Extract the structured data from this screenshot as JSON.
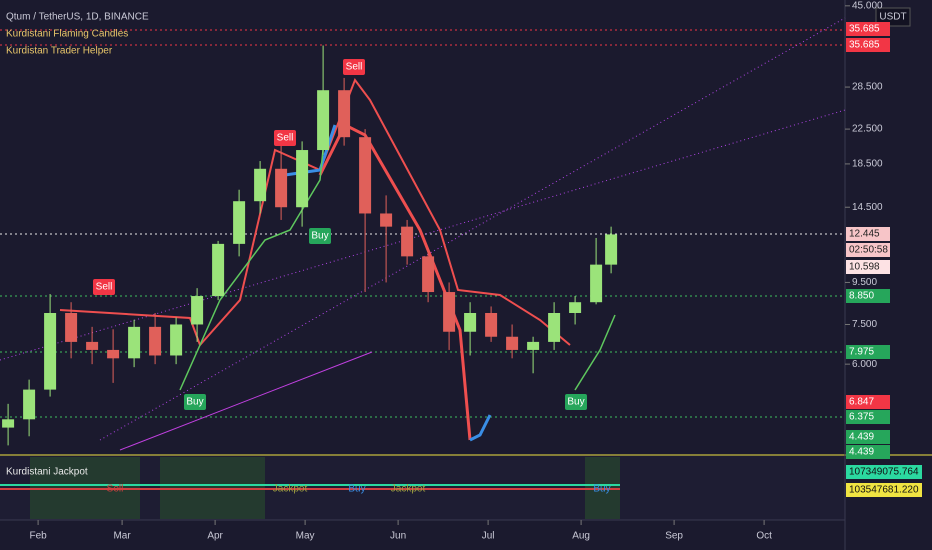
{
  "header": {
    "symbol": "Qtum / TetherUS, 1D, BINANCE",
    "indicators": [
      "Kurdistani Flaming Candles",
      "Kurdistan Trader Helper"
    ],
    "currency": "USDT"
  },
  "chart_data": {
    "type": "candlestick",
    "log": true,
    "xlim": [
      18.3,
      298.3
    ],
    "ylim": [
      3.6,
      46.5
    ],
    "xticks": [
      {
        "value": 31,
        "label": "Feb"
      },
      {
        "value": 59,
        "label": "Mar"
      },
      {
        "value": 90,
        "label": "Apr"
      },
      {
        "value": 120,
        "label": "May"
      },
      {
        "value": 151,
        "label": "Jun"
      },
      {
        "value": 181,
        "label": "Jul"
      },
      {
        "value": 212,
        "label": "Aug"
      },
      {
        "value": 243,
        "label": "Sep"
      },
      {
        "value": 273,
        "label": "Oct"
      }
    ],
    "yticks": [
      {
        "value": 45,
        "label": "45.000"
      },
      {
        "value": 28.5,
        "label": "28.500"
      },
      {
        "value": 22.5,
        "label": "22.500"
      },
      {
        "value": 18.5,
        "label": "18.500"
      },
      {
        "value": 14.5,
        "label": "14.500"
      },
      {
        "value": 9.5,
        "label": "9.500"
      },
      {
        "value": 7.5,
        "label": "7.500"
      },
      {
        "value": 6,
        "label": "6.000"
      }
    ],
    "x": [
      21,
      28,
      35,
      42,
      49,
      56,
      63,
      70,
      77,
      84,
      91,
      98,
      105,
      112,
      119,
      126,
      133,
      140,
      147,
      154,
      161,
      168,
      175,
      182,
      189,
      196,
      203,
      210,
      217,
      222
    ],
    "open": [
      4.2,
      4.4,
      5.2,
      8.0,
      6.8,
      6.5,
      6.2,
      7.4,
      6.3,
      7.5,
      8.8,
      11.8,
      15.0,
      18.0,
      14.5,
      20.0,
      28.0,
      21.5,
      14.0,
      13.0,
      11.0,
      9.0,
      7.2,
      8.0,
      7.0,
      6.5,
      6.8,
      8.0,
      8.5,
      10.5
    ],
    "high": [
      4.8,
      5.5,
      8.9,
      8.5,
      7.4,
      7.3,
      7.7,
      8.0,
      7.8,
      9.2,
      12.0,
      16.0,
      18.8,
      20.5,
      21.0,
      36.0,
      30.0,
      22.5,
      15.5,
      13.5,
      11.5,
      9.5,
      8.5,
      8.3,
      7.5,
      7.0,
      8.5,
      8.8,
      12.2,
      13.0
    ],
    "low": [
      3.8,
      4.0,
      5.0,
      6.2,
      6.0,
      5.4,
      5.9,
      6.0,
      6.0,
      6.8,
      8.6,
      11.0,
      14.0,
      13.5,
      13.0,
      19.5,
      20.5,
      9.0,
      9.5,
      10.5,
      8.5,
      6.5,
      6.3,
      6.8,
      6.2,
      5.7,
      6.5,
      7.5,
      8.4,
      10.0
    ],
    "close": [
      4.4,
      5.2,
      8.0,
      6.8,
      6.5,
      6.2,
      7.4,
      6.3,
      7.5,
      8.8,
      11.8,
      15.0,
      18.0,
      14.5,
      20.0,
      28.0,
      21.5,
      14.0,
      13.0,
      11.0,
      9.0,
      7.2,
      8.0,
      7.0,
      6.5,
      6.8,
      8.0,
      8.5,
      10.5,
      12.445
    ],
    "up_color": "#9be37a",
    "down_color": "#e0605a"
  },
  "price_labels": [
    {
      "text": "35.685",
      "color": "#f23645"
    },
    {
      "text": "35.685",
      "color": "#f23645"
    },
    {
      "text": "12.445",
      "color": "#f7c5c8"
    },
    {
      "text": "02:50:58",
      "color": "#f7c5c8"
    },
    {
      "text": "10.598",
      "color": "#fde2e4"
    },
    {
      "text": "8.850",
      "color": "#26a65b"
    },
    {
      "text": "7.975",
      "color": "#26a65b"
    },
    {
      "text": "6.847",
      "color": "#f23645"
    },
    {
      "text": "6.375",
      "color": "#26a65b"
    },
    {
      "text": "4.439",
      "color": "#26a65b"
    },
    {
      "text": "4.439",
      "color": "#26a65b"
    }
  ],
  "signals": [
    "Sell",
    "Sell",
    "Sell",
    "Buy",
    "Buy",
    "Buy"
  ],
  "lower_pane": {
    "title": "Kurdistani Jackpot",
    "labels": [
      "107349075.764",
      "103547681.220"
    ],
    "signals": [
      "Sell",
      "Jackpot",
      "Buy",
      "Jackpot",
      "Buy"
    ]
  }
}
